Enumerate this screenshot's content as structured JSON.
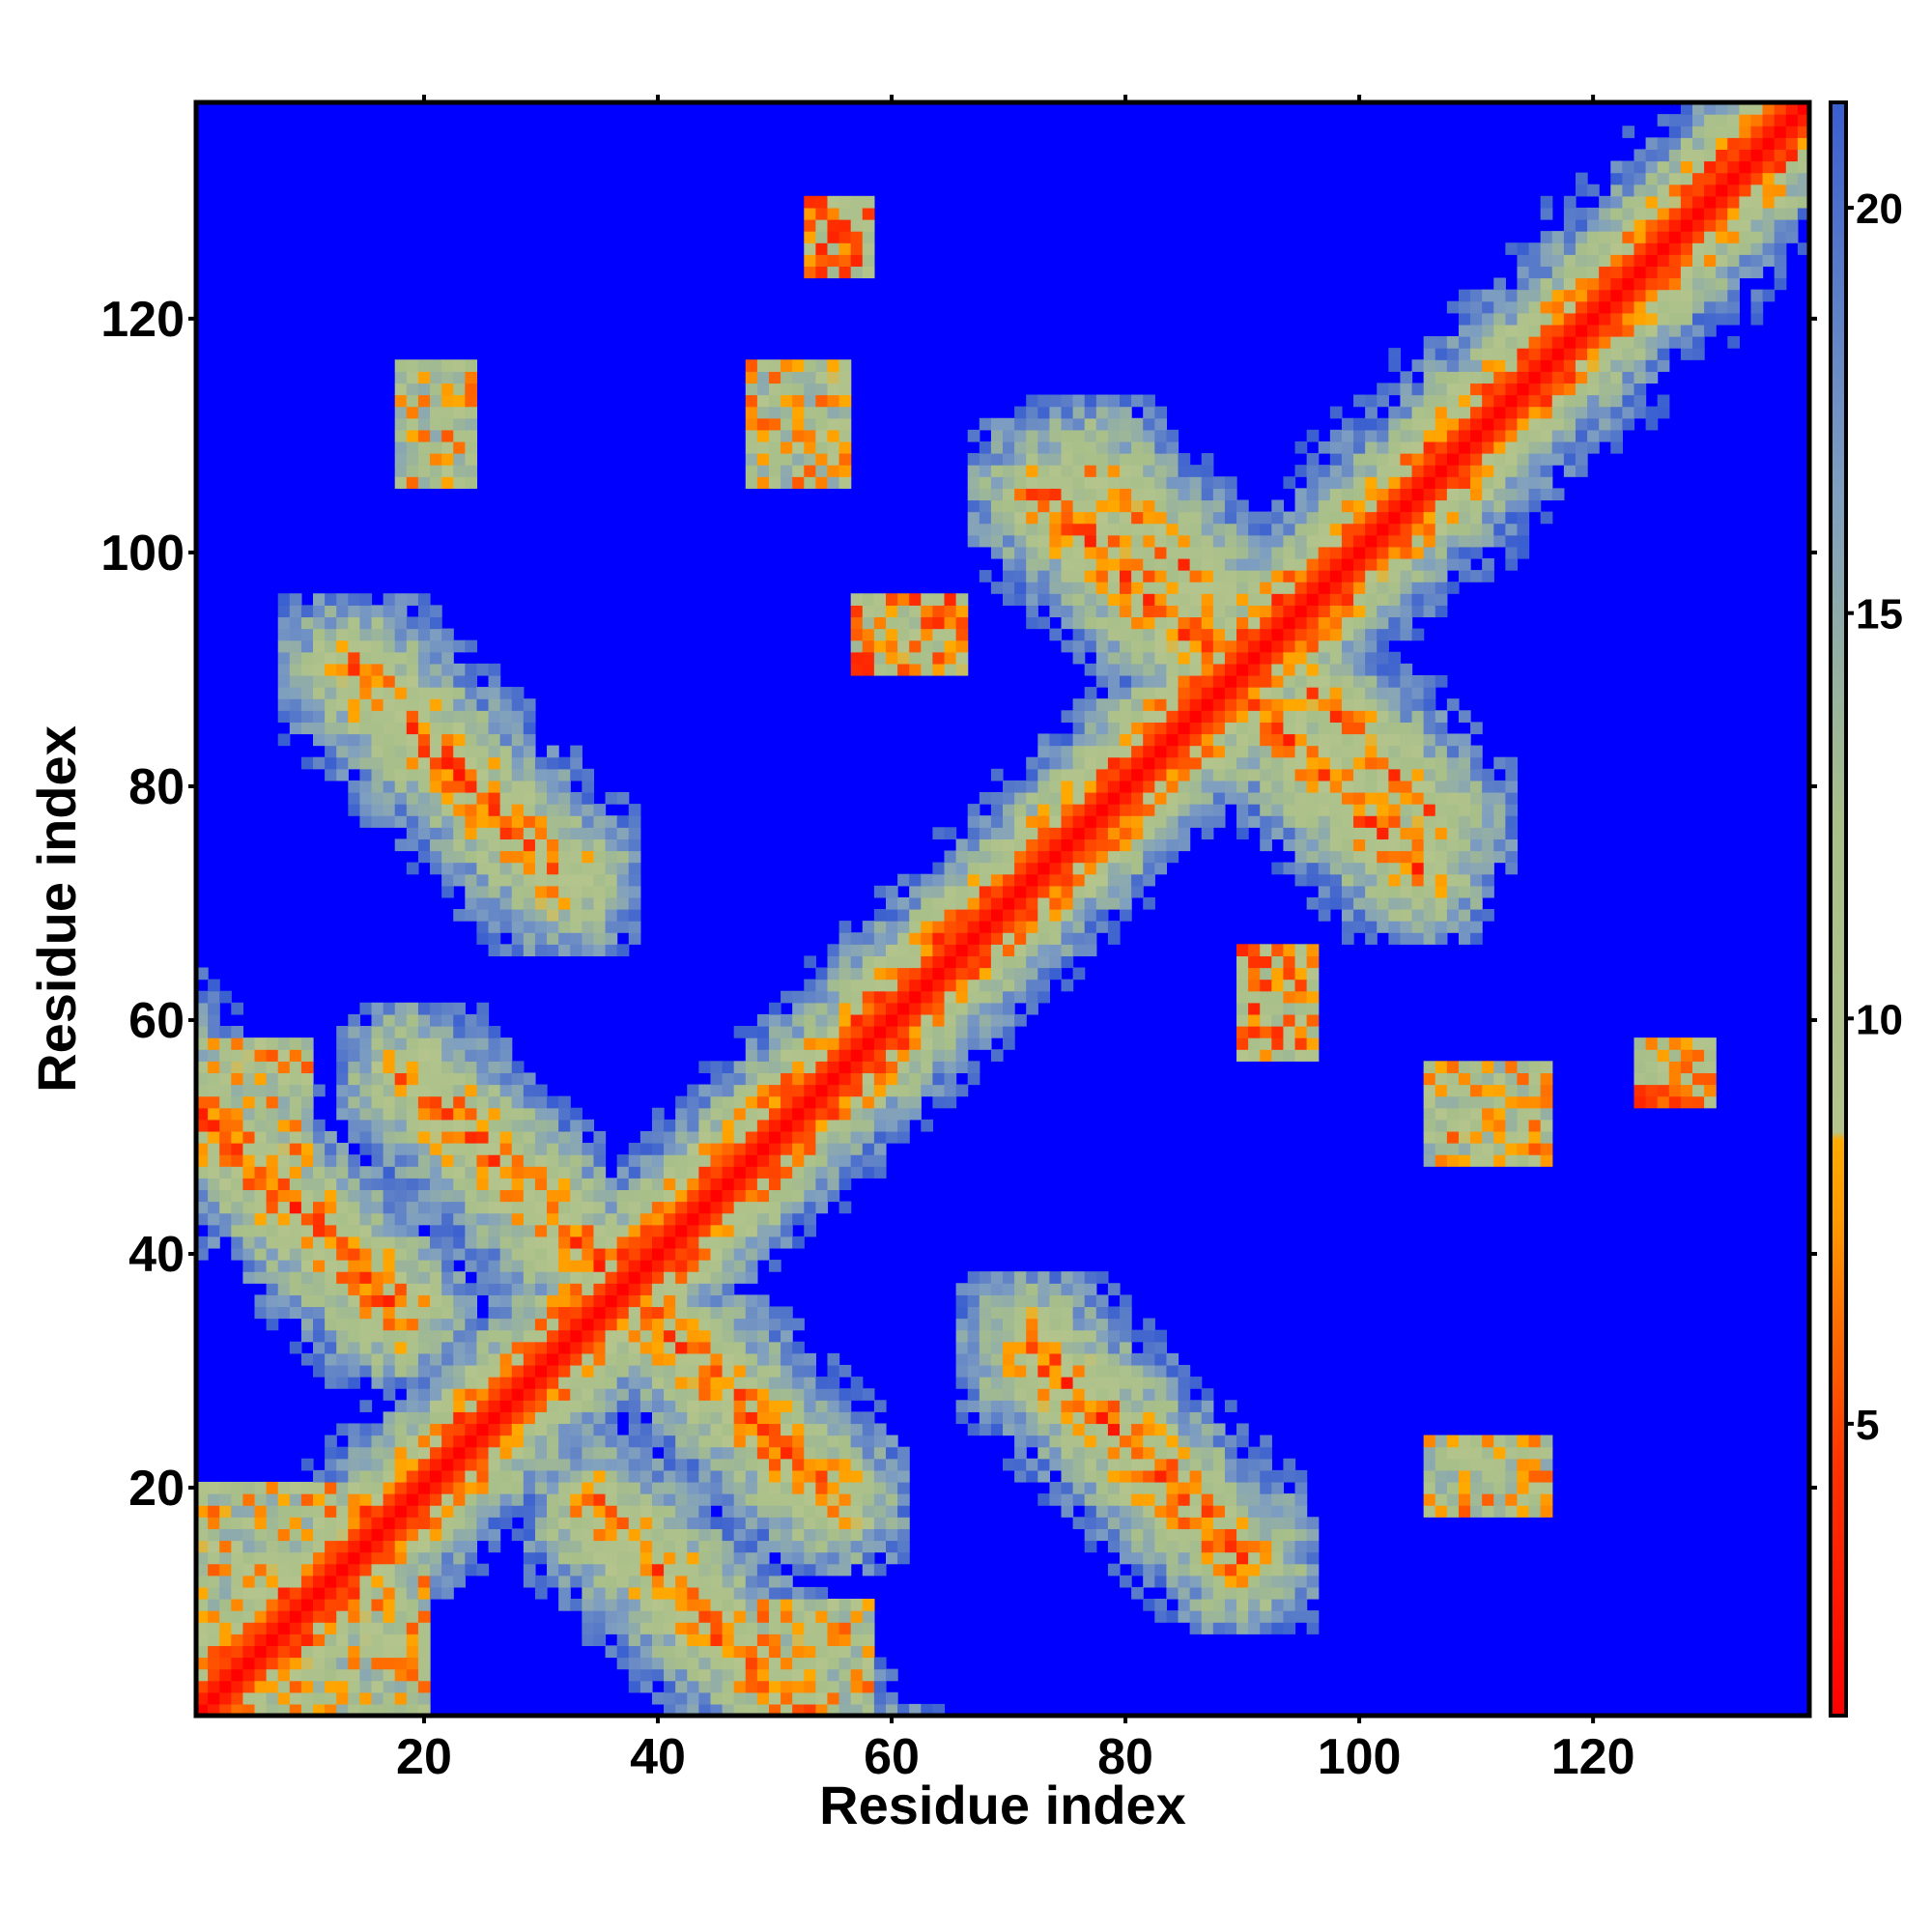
{
  "chart_data": {
    "type": "heatmap",
    "title": "",
    "xlabel": "Residue index",
    "ylabel": "Residue index",
    "n_residues": 138,
    "xlim": [
      1,
      138
    ],
    "ylim": [
      1,
      138
    ],
    "x_ticks": [
      20,
      40,
      60,
      80,
      100,
      120
    ],
    "y_ticks": [
      20,
      40,
      60,
      80,
      100,
      120
    ],
    "colorbar": {
      "ticks": [
        5,
        10,
        15,
        20
      ],
      "range": [
        1.4,
        21.3
      ],
      "stops": [
        {
          "value": 1.4,
          "color": "#ff0000"
        },
        {
          "value": 4.5,
          "color": "#ff3300"
        },
        {
          "value": 7.5,
          "color": "#ff9900"
        },
        {
          "value": 8.5,
          "color": "#ffaa00"
        },
        {
          "value": 8.6,
          "color": "#b4c48c"
        },
        {
          "value": 12.5,
          "color": "#a8bf8a"
        },
        {
          "value": 16.5,
          "color": "#7f9fc0"
        },
        {
          "value": 21.3,
          "color": "#3a5fd0"
        }
      ],
      "background_color": "#0000ff"
    },
    "description_of_values": "pairwise residue distance",
    "diagonal": {
      "from": 1,
      "to": 138,
      "value": 2
    },
    "features": [
      {
        "kind": "antidiagonal",
        "sum": 53,
        "from": 35,
        "to": 70,
        "value": 6
      },
      {
        "kind": "antidiagonal",
        "sum": 178,
        "from": 85,
        "to": 105,
        "value": 6
      },
      {
        "kind": "antidiagonal",
        "sum": 104,
        "from": 14,
        "to": 32,
        "value": 6
      },
      {
        "kind": "antidiagonal",
        "sum": 104,
        "from": 72,
        "to": 90,
        "value": 6
      },
      {
        "kind": "antidiagonal",
        "sum": 74,
        "from": 19,
        "to": 36,
        "value": 6
      },
      {
        "kind": "antidiagonal",
        "sum": 74,
        "from": 38,
        "to": 55,
        "value": 6
      },
      {
        "kind": "antidiagonal",
        "sum": 184,
        "from": 96,
        "to": 104,
        "value": 7
      },
      {
        "kind": "antidiagonal",
        "sum": 184,
        "from": 77,
        "to": 86,
        "value": 7
      },
      {
        "kind": "diagonal",
        "offset": 2,
        "from": 100,
        "to": 128,
        "value": 8
      },
      {
        "kind": "block",
        "x": [
          57,
          66
        ],
        "y": [
          90,
          96
        ],
        "value": 7
      },
      {
        "kind": "block",
        "x": [
          90,
          96
        ],
        "y": [
          57,
          64
        ],
        "value": 7
      },
      {
        "kind": "block",
        "x": [
          54,
          58
        ],
        "y": [
          124,
          130
        ],
        "value": 7
      },
      {
        "kind": "block",
        "x": [
          124,
          130
        ],
        "y": [
          53,
          58
        ],
        "value": 7
      },
      {
        "kind": "block",
        "x": [
          1,
          12
        ],
        "y": [
          1,
          20
        ],
        "value": 9
      },
      {
        "kind": "block",
        "x": [
          48,
          56
        ],
        "y": [
          3,
          10
        ],
        "value": 10
      },
      {
        "kind": "block",
        "x": [
          2,
          10
        ],
        "y": [
          48,
          58
        ],
        "value": 9
      },
      {
        "kind": "block",
        "x": [
          18,
          24
        ],
        "y": [
          106,
          116
        ],
        "value": 9
      },
      {
        "kind": "block",
        "x": [
          48,
          56
        ],
        "y": [
          106,
          116
        ],
        "value": 9
      }
    ]
  }
}
